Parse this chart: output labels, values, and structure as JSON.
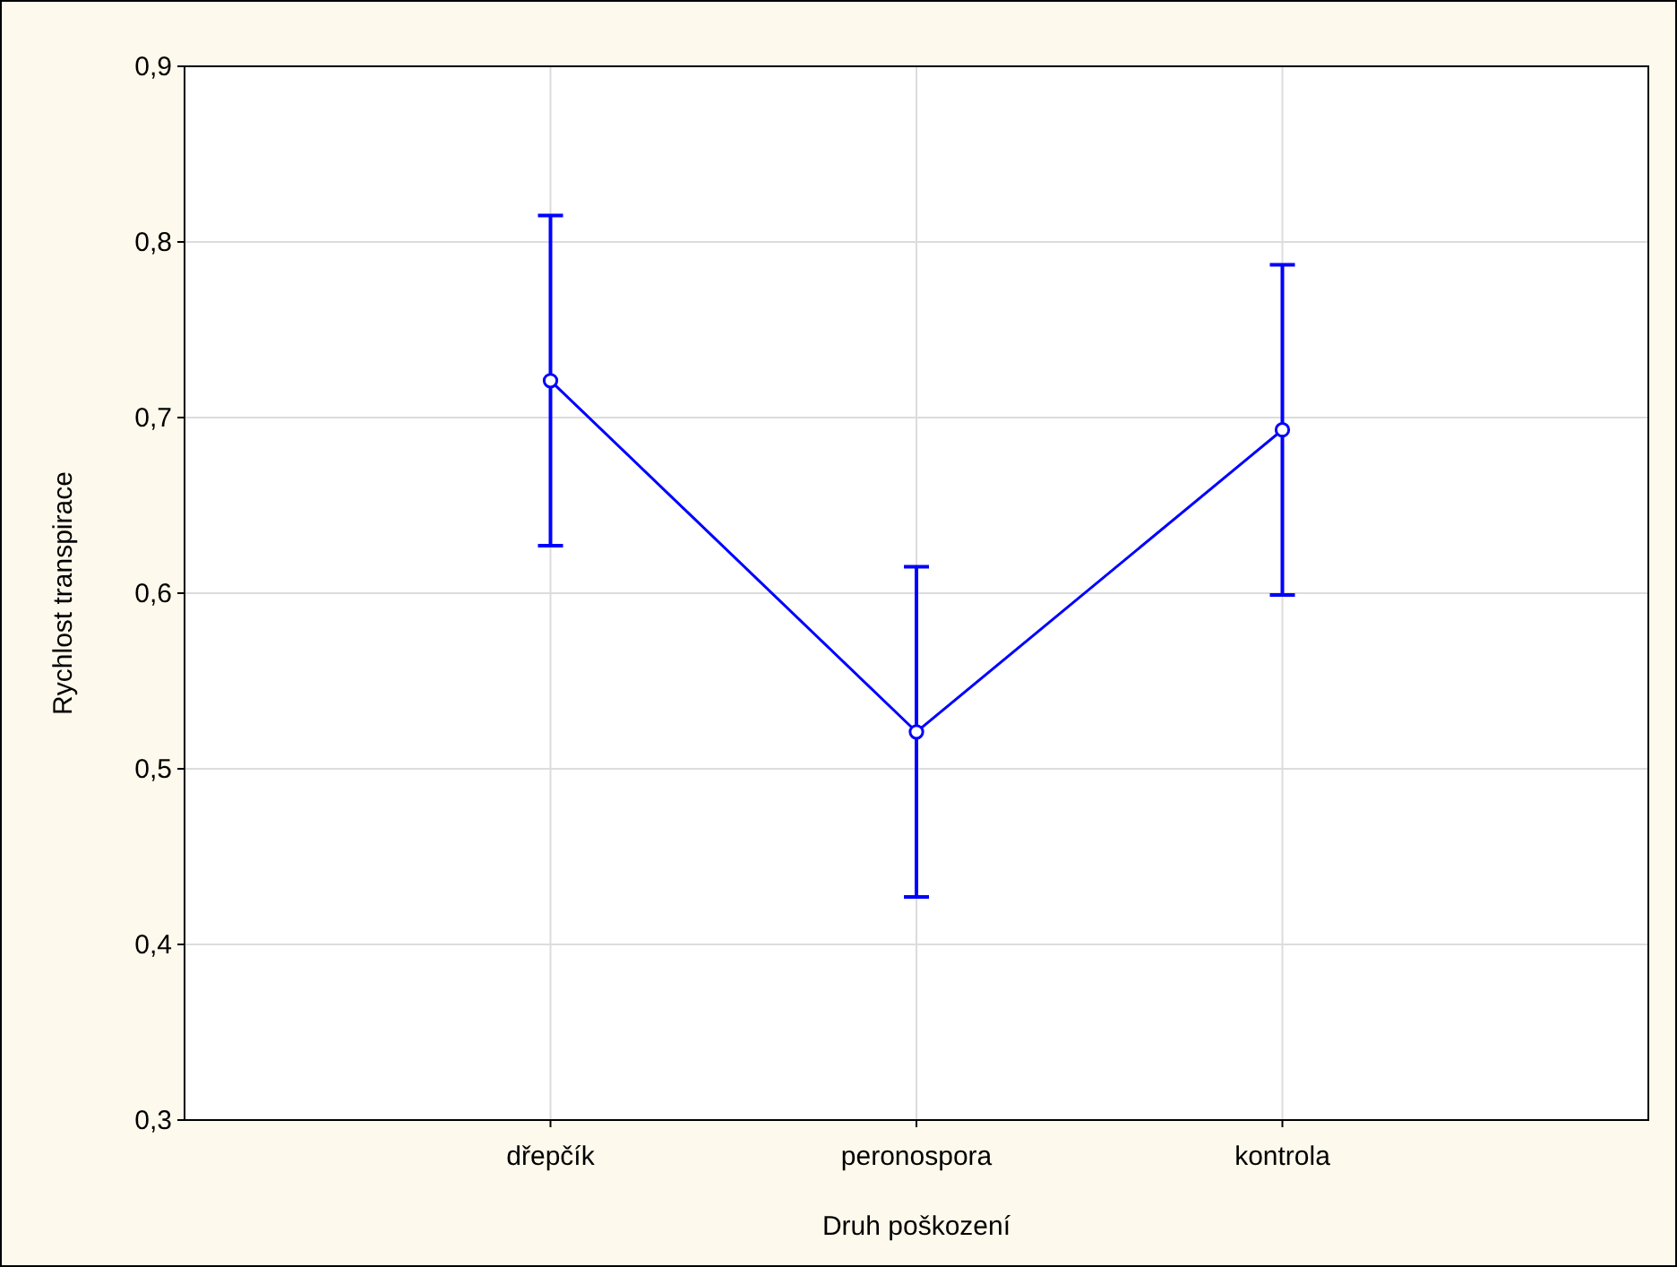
{
  "chart_data": {
    "type": "line",
    "xlabel": "Druh poškození",
    "ylabel": "Rychlost transpirace",
    "categories": [
      "dřepčík",
      "peronospora",
      "kontrola"
    ],
    "series": [
      {
        "color": "#0000ff",
        "values": [
          0.721,
          0.521,
          0.693
        ],
        "errors": [
          0.094,
          0.094,
          0.094
        ]
      }
    ],
    "ylim": [
      0.3,
      0.9
    ],
    "yticks": [
      {
        "value": 0.3,
        "label": "0,3"
      },
      {
        "value": 0.4,
        "label": "0,4"
      },
      {
        "value": 0.5,
        "label": "0,5"
      },
      {
        "value": 0.6,
        "label": "0,6"
      },
      {
        "value": 0.7,
        "label": "0,7"
      },
      {
        "value": 0.8,
        "label": "0,8"
      },
      {
        "value": 0.9,
        "label": "0,9"
      }
    ],
    "grid": true,
    "marker": "circle",
    "line_style": "solid"
  }
}
